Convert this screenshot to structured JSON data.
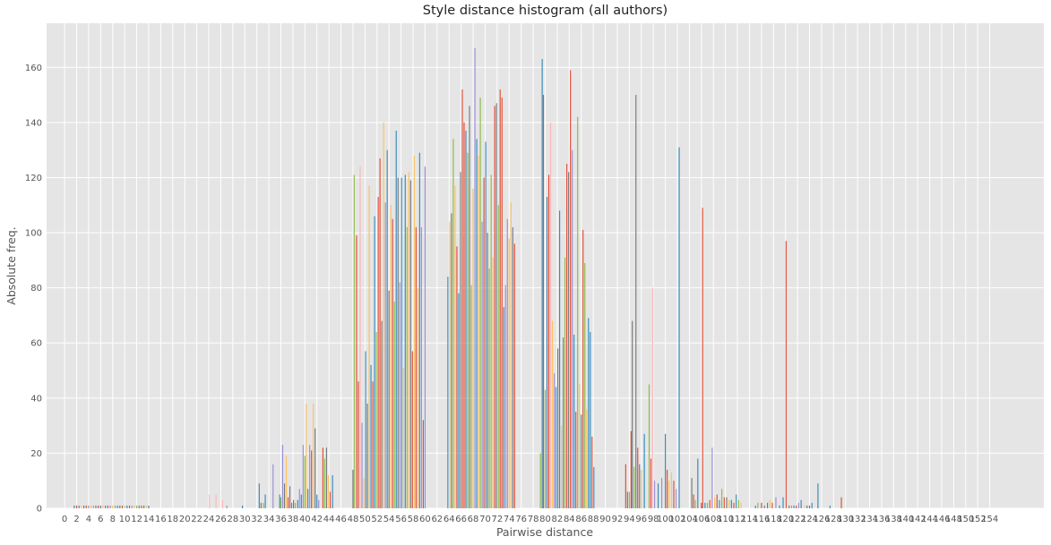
{
  "chart_data": {
    "type": "bar",
    "title": "Style distance histogram (all authors)",
    "xlabel": "Pairwise distance",
    "ylabel": "Absolute freq.",
    "xlim": [
      -3,
      163
    ],
    "ylim": [
      0,
      176
    ],
    "grid": true,
    "legend": "none",
    "x_ticks": [
      0,
      2,
      4,
      6,
      8,
      10,
      12,
      14,
      16,
      18,
      20,
      22,
      24,
      26,
      28,
      30,
      32,
      34,
      36,
      38,
      40,
      42,
      44,
      46,
      48,
      50,
      52,
      54,
      56,
      58,
      60,
      62,
      64,
      66,
      68,
      70,
      72,
      74,
      76,
      78,
      80,
      82,
      84,
      86,
      88,
      90,
      92,
      94,
      96,
      98,
      100,
      102,
      104,
      106,
      108,
      110,
      112,
      114,
      116,
      118,
      120,
      122,
      124,
      126,
      128,
      130,
      132,
      134,
      136,
      138,
      140,
      142,
      144,
      146,
      148,
      150,
      152,
      154
    ],
    "y_ticks": [
      0,
      20,
      40,
      60,
      80,
      100,
      120,
      140,
      160
    ],
    "series_colors": [
      "#348ABD",
      "#E24A33",
      "#988ED5",
      "#777777",
      "#FBC15E",
      "#8EBA42",
      "#FFB5B8"
    ],
    "bars": [
      {
        "x": 1.6,
        "h": 1,
        "c": 0
      },
      {
        "x": 2.0,
        "h": 1,
        "c": 1
      },
      {
        "x": 2.4,
        "h": 1,
        "c": 3
      },
      {
        "x": 2.8,
        "h": 1,
        "c": 4
      },
      {
        "x": 3.2,
        "h": 1,
        "c": 0
      },
      {
        "x": 3.6,
        "h": 1,
        "c": 1
      },
      {
        "x": 4.0,
        "h": 1,
        "c": 2
      },
      {
        "x": 4.4,
        "h": 1,
        "c": 4
      },
      {
        "x": 4.8,
        "h": 1,
        "c": 5
      },
      {
        "x": 5.2,
        "h": 1,
        "c": 0
      },
      {
        "x": 5.6,
        "h": 1,
        "c": 1
      },
      {
        "x": 6.0,
        "h": 1,
        "c": 3
      },
      {
        "x": 6.4,
        "h": 1,
        "c": 4
      },
      {
        "x": 6.8,
        "h": 1,
        "c": 0
      },
      {
        "x": 7.2,
        "h": 1,
        "c": 1
      },
      {
        "x": 7.6,
        "h": 1,
        "c": 2
      },
      {
        "x": 8.0,
        "h": 1,
        "c": 4
      },
      {
        "x": 8.4,
        "h": 1,
        "c": 5
      },
      {
        "x": 8.8,
        "h": 1,
        "c": 0
      },
      {
        "x": 9.2,
        "h": 1,
        "c": 1
      },
      {
        "x": 9.6,
        "h": 1,
        "c": 3
      },
      {
        "x": 10.0,
        "h": 1,
        "c": 4
      },
      {
        "x": 10.4,
        "h": 1,
        "c": 0
      },
      {
        "x": 10.8,
        "h": 1,
        "c": 1
      },
      {
        "x": 11.2,
        "h": 1,
        "c": 2
      },
      {
        "x": 11.6,
        "h": 1,
        "c": 4
      },
      {
        "x": 12.0,
        "h": 1,
        "c": 5
      },
      {
        "x": 12.4,
        "h": 1,
        "c": 0
      },
      {
        "x": 12.8,
        "h": 1,
        "c": 1
      },
      {
        "x": 13.2,
        "h": 1,
        "c": 3
      },
      {
        "x": 13.6,
        "h": 1,
        "c": 4
      },
      {
        "x": 14.0,
        "h": 1,
        "c": 0
      },
      {
        "x": 24.1,
        "h": 5,
        "c": 6
      },
      {
        "x": 25.2,
        "h": 5,
        "c": 6
      },
      {
        "x": 26.3,
        "h": 3,
        "c": 6
      },
      {
        "x": 27.0,
        "h": 1,
        "c": 2
      },
      {
        "x": 29.6,
        "h": 1,
        "c": 0
      },
      {
        "x": 32.4,
        "h": 9,
        "c": 0
      },
      {
        "x": 32.7,
        "h": 2,
        "c": 3
      },
      {
        "x": 33.1,
        "h": 2,
        "c": 5
      },
      {
        "x": 33.4,
        "h": 5,
        "c": 0
      },
      {
        "x": 34.7,
        "h": 16,
        "c": 2
      },
      {
        "x": 35.8,
        "h": 5,
        "c": 0
      },
      {
        "x": 36.0,
        "h": 4,
        "c": 5
      },
      {
        "x": 36.3,
        "h": 23,
        "c": 2
      },
      {
        "x": 36.6,
        "h": 9,
        "c": 3
      },
      {
        "x": 36.9,
        "h": 19,
        "c": 4
      },
      {
        "x": 37.2,
        "h": 4,
        "c": 1
      },
      {
        "x": 37.5,
        "h": 8,
        "c": 3
      },
      {
        "x": 37.8,
        "h": 2,
        "c": 0
      },
      {
        "x": 38.1,
        "h": 3,
        "c": 1
      },
      {
        "x": 38.4,
        "h": 2,
        "c": 5
      },
      {
        "x": 38.8,
        "h": 3,
        "c": 0
      },
      {
        "x": 39.1,
        "h": 7,
        "c": 2
      },
      {
        "x": 39.4,
        "h": 5,
        "c": 0
      },
      {
        "x": 39.7,
        "h": 23,
        "c": 2
      },
      {
        "x": 40.0,
        "h": 19,
        "c": 5
      },
      {
        "x": 40.2,
        "h": 38,
        "c": 4
      },
      {
        "x": 40.5,
        "h": 7,
        "c": 0
      },
      {
        "x": 40.8,
        "h": 23,
        "c": 2
      },
      {
        "x": 41.1,
        "h": 21,
        "c": 1
      },
      {
        "x": 41.4,
        "h": 38,
        "c": 4
      },
      {
        "x": 41.7,
        "h": 29,
        "c": 3
      },
      {
        "x": 42.0,
        "h": 5,
        "c": 0
      },
      {
        "x": 42.3,
        "h": 3,
        "c": 2
      },
      {
        "x": 43.0,
        "h": 22,
        "c": 1
      },
      {
        "x": 43.3,
        "h": 18,
        "c": 5
      },
      {
        "x": 43.6,
        "h": 22,
        "c": 3
      },
      {
        "x": 43.9,
        "h": 12,
        "c": 4
      },
      {
        "x": 44.2,
        "h": 6,
        "c": 1
      },
      {
        "x": 44.6,
        "h": 12,
        "c": 0
      },
      {
        "x": 48.0,
        "h": 14,
        "c": 3
      },
      {
        "x": 48.2,
        "h": 121,
        "c": 5
      },
      {
        "x": 48.6,
        "h": 99,
        "c": 1
      },
      {
        "x": 48.9,
        "h": 46,
        "c": 1
      },
      {
        "x": 49.2,
        "h": 124,
        "c": 6
      },
      {
        "x": 49.5,
        "h": 31,
        "c": 2
      },
      {
        "x": 49.8,
        "h": 11,
        "c": 4
      },
      {
        "x": 50.1,
        "h": 57,
        "c": 0
      },
      {
        "x": 50.4,
        "h": 38,
        "c": 3
      },
      {
        "x": 50.7,
        "h": 117,
        "c": 4
      },
      {
        "x": 51.0,
        "h": 52,
        "c": 0
      },
      {
        "x": 51.3,
        "h": 46,
        "c": 1
      },
      {
        "x": 51.6,
        "h": 106,
        "c": 0
      },
      {
        "x": 51.9,
        "h": 64,
        "c": 5
      },
      {
        "x": 52.2,
        "h": 113,
        "c": 1
      },
      {
        "x": 52.5,
        "h": 127,
        "c": 1
      },
      {
        "x": 52.8,
        "h": 68,
        "c": 3
      },
      {
        "x": 53.1,
        "h": 140,
        "c": 4
      },
      {
        "x": 53.4,
        "h": 111,
        "c": 2
      },
      {
        "x": 53.7,
        "h": 130,
        "c": 0
      },
      {
        "x": 54.0,
        "h": 79,
        "c": 3
      },
      {
        "x": 54.3,
        "h": 110,
        "c": 4
      },
      {
        "x": 54.6,
        "h": 105,
        "c": 1
      },
      {
        "x": 54.9,
        "h": 75,
        "c": 5
      },
      {
        "x": 55.2,
        "h": 137,
        "c": 0
      },
      {
        "x": 55.5,
        "h": 120,
        "c": 3
      },
      {
        "x": 55.8,
        "h": 82,
        "c": 2
      },
      {
        "x": 56.1,
        "h": 120,
        "c": 0
      },
      {
        "x": 56.4,
        "h": 51,
        "c": 4
      },
      {
        "x": 56.7,
        "h": 121,
        "c": 0
      },
      {
        "x": 57.0,
        "h": 102,
        "c": 5
      },
      {
        "x": 57.3,
        "h": 122,
        "c": 4
      },
      {
        "x": 57.6,
        "h": 119,
        "c": 3
      },
      {
        "x": 57.9,
        "h": 57,
        "c": 1
      },
      {
        "x": 58.2,
        "h": 128,
        "c": 4
      },
      {
        "x": 58.5,
        "h": 102,
        "c": 1
      },
      {
        "x": 58.8,
        "h": 80,
        "c": 4
      },
      {
        "x": 59.1,
        "h": 129,
        "c": 0
      },
      {
        "x": 59.4,
        "h": 102,
        "c": 2
      },
      {
        "x": 59.7,
        "h": 32,
        "c": 1
      },
      {
        "x": 60.0,
        "h": 124,
        "c": 2
      },
      {
        "x": 63.8,
        "h": 84,
        "c": 0
      },
      {
        "x": 64.1,
        "h": 104,
        "c": 4
      },
      {
        "x": 64.4,
        "h": 107,
        "c": 3
      },
      {
        "x": 64.7,
        "h": 134,
        "c": 5
      },
      {
        "x": 65.0,
        "h": 117,
        "c": 4
      },
      {
        "x": 65.3,
        "h": 95,
        "c": 1
      },
      {
        "x": 65.6,
        "h": 78,
        "c": 0
      },
      {
        "x": 65.9,
        "h": 122,
        "c": 3
      },
      {
        "x": 66.2,
        "h": 152,
        "c": 1
      },
      {
        "x": 66.5,
        "h": 140,
        "c": 1
      },
      {
        "x": 66.8,
        "h": 137,
        "c": 0
      },
      {
        "x": 67.1,
        "h": 129,
        "c": 5
      },
      {
        "x": 67.4,
        "h": 146,
        "c": 3
      },
      {
        "x": 67.7,
        "h": 81,
        "c": 5
      },
      {
        "x": 68.0,
        "h": 116,
        "c": 4
      },
      {
        "x": 68.3,
        "h": 167,
        "c": 2
      },
      {
        "x": 68.6,
        "h": 134,
        "c": 0
      },
      {
        "x": 68.9,
        "h": 128,
        "c": 4
      },
      {
        "x": 69.2,
        "h": 149,
        "c": 5
      },
      {
        "x": 69.5,
        "h": 104,
        "c": 2
      },
      {
        "x": 69.8,
        "h": 120,
        "c": 1
      },
      {
        "x": 70.1,
        "h": 133,
        "c": 0
      },
      {
        "x": 70.4,
        "h": 100,
        "c": 3
      },
      {
        "x": 70.7,
        "h": 87,
        "c": 5
      },
      {
        "x": 71.0,
        "h": 121,
        "c": 5
      },
      {
        "x": 71.3,
        "h": 91,
        "c": 4
      },
      {
        "x": 71.6,
        "h": 146,
        "c": 1
      },
      {
        "x": 71.9,
        "h": 147,
        "c": 3
      },
      {
        "x": 72.2,
        "h": 110,
        "c": 5
      },
      {
        "x": 72.5,
        "h": 152,
        "c": 1
      },
      {
        "x": 72.8,
        "h": 149,
        "c": 1
      },
      {
        "x": 73.1,
        "h": 73,
        "c": 0
      },
      {
        "x": 73.4,
        "h": 81,
        "c": 2
      },
      {
        "x": 73.7,
        "h": 105,
        "c": 2
      },
      {
        "x": 74.0,
        "h": 98,
        "c": 4
      },
      {
        "x": 74.3,
        "h": 111,
        "c": 4
      },
      {
        "x": 74.6,
        "h": 102,
        "c": 3
      },
      {
        "x": 74.9,
        "h": 96,
        "c": 1
      },
      {
        "x": 79.2,
        "h": 20,
        "c": 5
      },
      {
        "x": 79.5,
        "h": 163,
        "c": 0
      },
      {
        "x": 79.7,
        "h": 150,
        "c": 1
      },
      {
        "x": 80.0,
        "h": 43,
        "c": 5
      },
      {
        "x": 80.3,
        "h": 113,
        "c": 0
      },
      {
        "x": 80.6,
        "h": 121,
        "c": 1
      },
      {
        "x": 80.9,
        "h": 140,
        "c": 6
      },
      {
        "x": 81.2,
        "h": 68,
        "c": 4
      },
      {
        "x": 81.5,
        "h": 49,
        "c": 2
      },
      {
        "x": 81.8,
        "h": 44,
        "c": 0
      },
      {
        "x": 82.1,
        "h": 58,
        "c": 3
      },
      {
        "x": 82.4,
        "h": 108,
        "c": 0
      },
      {
        "x": 82.7,
        "h": 30,
        "c": 4
      },
      {
        "x": 83.0,
        "h": 62,
        "c": 3
      },
      {
        "x": 83.3,
        "h": 91,
        "c": 5
      },
      {
        "x": 83.6,
        "h": 125,
        "c": 1
      },
      {
        "x": 83.9,
        "h": 122,
        "c": 3
      },
      {
        "x": 84.2,
        "h": 159,
        "c": 1
      },
      {
        "x": 84.5,
        "h": 130,
        "c": 2
      },
      {
        "x": 84.8,
        "h": 63,
        "c": 0
      },
      {
        "x": 85.1,
        "h": 35,
        "c": 1
      },
      {
        "x": 85.4,
        "h": 142,
        "c": 5
      },
      {
        "x": 85.7,
        "h": 45,
        "c": 4
      },
      {
        "x": 86.0,
        "h": 34,
        "c": 0
      },
      {
        "x": 86.3,
        "h": 101,
        "c": 1
      },
      {
        "x": 86.6,
        "h": 89,
        "c": 5
      },
      {
        "x": 86.9,
        "h": 36,
        "c": 4
      },
      {
        "x": 87.2,
        "h": 69,
        "c": 0
      },
      {
        "x": 87.5,
        "h": 64,
        "c": 0
      },
      {
        "x": 87.8,
        "h": 26,
        "c": 1
      },
      {
        "x": 88.1,
        "h": 15,
        "c": 0
      },
      {
        "x": 93.4,
        "h": 16,
        "c": 1
      },
      {
        "x": 93.7,
        "h": 6,
        "c": 0
      },
      {
        "x": 94.0,
        "h": 6,
        "c": 5
      },
      {
        "x": 94.3,
        "h": 28,
        "c": 1
      },
      {
        "x": 94.5,
        "h": 68,
        "c": 3
      },
      {
        "x": 94.8,
        "h": 15,
        "c": 5
      },
      {
        "x": 95.1,
        "h": 150,
        "c": 3
      },
      {
        "x": 95.4,
        "h": 22,
        "c": 1
      },
      {
        "x": 95.7,
        "h": 16,
        "c": 0
      },
      {
        "x": 96.0,
        "h": 14,
        "c": 4
      },
      {
        "x": 96.5,
        "h": 27,
        "c": 0
      },
      {
        "x": 97.3,
        "h": 45,
        "c": 5
      },
      {
        "x": 97.6,
        "h": 18,
        "c": 1
      },
      {
        "x": 97.9,
        "h": 80,
        "c": 6
      },
      {
        "x": 98.2,
        "h": 10,
        "c": 2
      },
      {
        "x": 98.8,
        "h": 9,
        "c": 0
      },
      {
        "x": 99.4,
        "h": 11,
        "c": 2
      },
      {
        "x": 100.0,
        "h": 27,
        "c": 0
      },
      {
        "x": 100.3,
        "h": 14,
        "c": 1
      },
      {
        "x": 100.6,
        "h": 10,
        "c": 4
      },
      {
        "x": 101.0,
        "h": 13,
        "c": 4
      },
      {
        "x": 101.4,
        "h": 10,
        "c": 1
      },
      {
        "x": 101.8,
        "h": 7,
        "c": 2
      },
      {
        "x": 102.3,
        "h": 131,
        "c": 0
      },
      {
        "x": 104.4,
        "h": 11,
        "c": 3
      },
      {
        "x": 104.7,
        "h": 5,
        "c": 1
      },
      {
        "x": 105.0,
        "h": 3,
        "c": 5
      },
      {
        "x": 105.4,
        "h": 18,
        "c": 0
      },
      {
        "x": 106.0,
        "h": 2,
        "c": 1
      },
      {
        "x": 106.2,
        "h": 109,
        "c": 1
      },
      {
        "x": 106.6,
        "h": 2,
        "c": 0
      },
      {
        "x": 107.0,
        "h": 2,
        "c": 5
      },
      {
        "x": 107.4,
        "h": 3,
        "c": 1
      },
      {
        "x": 107.8,
        "h": 22,
        "c": 2
      },
      {
        "x": 108.2,
        "h": 4,
        "c": 4
      },
      {
        "x": 108.6,
        "h": 5,
        "c": 1
      },
      {
        "x": 109.0,
        "h": 3,
        "c": 0
      },
      {
        "x": 109.4,
        "h": 7,
        "c": 5
      },
      {
        "x": 109.8,
        "h": 4,
        "c": 1
      },
      {
        "x": 110.2,
        "h": 4,
        "c": 3
      },
      {
        "x": 110.6,
        "h": 3,
        "c": 4
      },
      {
        "x": 111.0,
        "h": 3,
        "c": 0
      },
      {
        "x": 111.4,
        "h": 2,
        "c": 1
      },
      {
        "x": 111.8,
        "h": 5,
        "c": 0
      },
      {
        "x": 112.2,
        "h": 3,
        "c": 5
      },
      {
        "x": 112.6,
        "h": 2,
        "c": 4
      },
      {
        "x": 115.0,
        "h": 1,
        "c": 0
      },
      {
        "x": 115.4,
        "h": 2,
        "c": 5
      },
      {
        "x": 116.0,
        "h": 2,
        "c": 1
      },
      {
        "x": 116.5,
        "h": 1,
        "c": 3
      },
      {
        "x": 117.0,
        "h": 2,
        "c": 0
      },
      {
        "x": 117.4,
        "h": 3,
        "c": 4
      },
      {
        "x": 117.8,
        "h": 2,
        "c": 1
      },
      {
        "x": 118.4,
        "h": 4,
        "c": 2
      },
      {
        "x": 119.0,
        "h": 1,
        "c": 0
      },
      {
        "x": 119.6,
        "h": 4,
        "c": 0
      },
      {
        "x": 120.1,
        "h": 97,
        "c": 1
      },
      {
        "x": 120.6,
        "h": 1,
        "c": 3
      },
      {
        "x": 121.0,
        "h": 1,
        "c": 5
      },
      {
        "x": 121.4,
        "h": 1,
        "c": 0
      },
      {
        "x": 121.8,
        "h": 1,
        "c": 1
      },
      {
        "x": 122.2,
        "h": 2,
        "c": 2
      },
      {
        "x": 122.6,
        "h": 3,
        "c": 0
      },
      {
        "x": 123.2,
        "h": 1,
        "c": 4
      },
      {
        "x": 123.6,
        "h": 1,
        "c": 0
      },
      {
        "x": 124.0,
        "h": 1,
        "c": 1
      },
      {
        "x": 124.4,
        "h": 2,
        "c": 0
      },
      {
        "x": 125.4,
        "h": 9,
        "c": 0
      },
      {
        "x": 127.4,
        "h": 1,
        "c": 0
      },
      {
        "x": 129.3,
        "h": 4,
        "c": 1
      }
    ]
  }
}
